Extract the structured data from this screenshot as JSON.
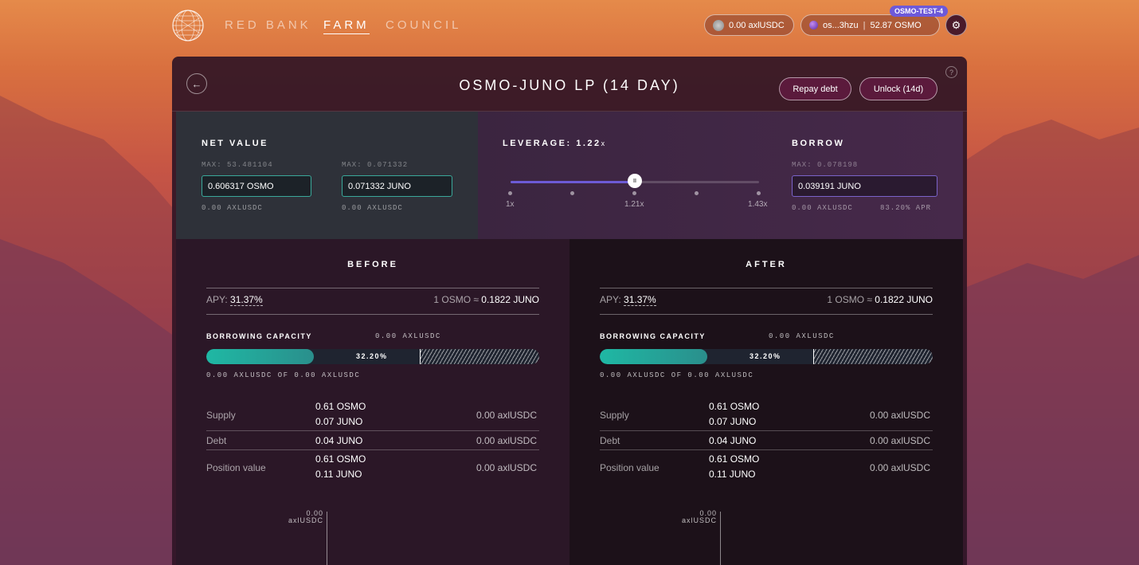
{
  "nav": {
    "links": [
      "RED BANK",
      "FARM",
      "COUNCIL"
    ],
    "active": "FARM",
    "balance_pill": "0.00 axlUSDC",
    "wallet": {
      "address": "os...3hzu",
      "balance": "52.87 OSMO"
    },
    "network_badge": "OSMO-TEST-4",
    "gear_icon": "gear-icon"
  },
  "header": {
    "title": "OSMO-JUNO LP (14 DAY)",
    "repay_label": "Repay debt",
    "unlock_label": "Unlock (14d)",
    "help_glyph": "?"
  },
  "net_value": {
    "label": "NET VALUE",
    "osmo": {
      "max": "MAX: 53.481104",
      "value": "0.606317 OSMO",
      "usd": "0.00 AXLUSDC"
    },
    "juno": {
      "max": "MAX: 0.071332",
      "value": "0.071332 JUNO",
      "usd": "0.00 AXLUSDC"
    }
  },
  "leverage": {
    "label": "LEVERAGE: 1.22",
    "suffix": "x",
    "level_fraction": 0.5,
    "marks": [
      "1x",
      "1.21x",
      "1.43x"
    ],
    "thumb_glyph": "II"
  },
  "borrow": {
    "label": "BORROW",
    "max": "MAX: 0.078198",
    "value": "0.039191 JUNO",
    "usd": "0.00 AXLUSDC",
    "apr": "83.20% APR"
  },
  "before": {
    "title": "BEFORE",
    "apy_label": "APY: ",
    "apy_value": "31.37%",
    "rate_prefix": "1 OSMO ≈ ",
    "rate_value": "0.1822 JUNO",
    "cap_label": "BORROWING CAPACITY",
    "cap_amount": "0.00 AXLUSDC",
    "cap_pct": "32.20%",
    "cap_fraction": 0.322,
    "cap_of": "0.00 AXLUSDC OF 0.00 AXLUSDC",
    "supply_label": "Supply",
    "supply_osmo": "0.61 OSMO",
    "supply_juno": "0.07 JUNO",
    "supply_usd": "0.00 axlUSDC",
    "debt_label": "Debt",
    "debt_juno": "0.04 JUNO",
    "debt_usd": "0.00 axlUSDC",
    "pos_label": "Position value",
    "pos_osmo": "0.61 OSMO",
    "pos_juno": "0.11 JUNO",
    "pos_usd": "0.00 axlUSDC",
    "axis_top": "0.00",
    "axis_unit": "axlUSDC"
  },
  "after": {
    "title": "AFTER",
    "apy_label": "APY: ",
    "apy_value": "31.37%",
    "rate_prefix": "1 OSMO ≈ ",
    "rate_value": "0.1822 JUNO",
    "cap_label": "BORROWING CAPACITY",
    "cap_amount": "0.00 AXLUSDC",
    "cap_pct": "32.20%",
    "cap_fraction": 0.322,
    "cap_of": "0.00 AXLUSDC OF 0.00 AXLUSDC",
    "supply_label": "Supply",
    "supply_osmo": "0.61 OSMO",
    "supply_juno": "0.07 JUNO",
    "supply_usd": "0.00 axlUSDC",
    "debt_label": "Debt",
    "debt_juno": "0.04 JUNO",
    "debt_usd": "0.00 axlUSDC",
    "pos_label": "Position value",
    "pos_osmo": "0.61 OSMO",
    "pos_juno": "0.11 JUNO",
    "pos_usd": "0.00 axlUSDC",
    "axis_top": "0.00",
    "axis_unit": "axlUSDC"
  },
  "colors": {
    "accent_teal": "#1fb8a4",
    "accent_purple": "#6d5bd6",
    "network_badge": "#6d59d9"
  }
}
